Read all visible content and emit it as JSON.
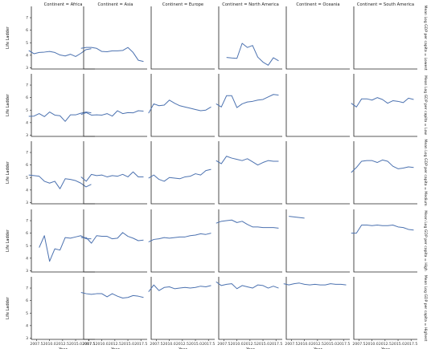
{
  "chart_data": {
    "type": "line",
    "columns": [
      "Continent = Africa",
      "Continent = Asia",
      "Continent = Europe",
      "Continent = North America",
      "Continent = Oceania",
      "Continent = South America"
    ],
    "rows": [
      "Mean Log GDP per capita = Lowest",
      "Mean Log GDP per capita = Low",
      "Mean Log GDP per capita = Medium",
      "Mean Log GDP per capita = High",
      "Mean Log GDP per capita = Highest"
    ],
    "ylabel": "Life Ladder",
    "xlabel": "Year",
    "xlim": [
      2006.5,
      2018.7
    ],
    "ylim": [
      2.9,
      7.9
    ],
    "yticks": [
      3,
      4,
      5,
      6,
      7
    ],
    "xticks": [
      2007.5,
      2010.0,
      2012.5,
      2015.0,
      2017.5
    ],
    "xtick_labels": [
      "2007.5",
      "2010.0",
      "2012.5",
      "2015.0",
      "2017.5"
    ],
    "ytick_labels": [
      "3",
      "4",
      "5",
      "6",
      "7"
    ],
    "panels": [
      [
        {
          "x": [
            2006,
            2007,
            2008,
            2009,
            2010,
            2011,
            2012,
            2013,
            2014,
            2015,
            2016,
            2017,
            2018
          ],
          "y": [
            4.38,
            4.12,
            4.22,
            4.25,
            4.3,
            4.22,
            4.02,
            3.94,
            4.08,
            3.9,
            4.15,
            4.45,
            4.52
          ]
        },
        {
          "x": [
            2006,
            2007,
            2008,
            2009,
            2010,
            2011,
            2012,
            2013,
            2014,
            2015,
            2016,
            2017,
            2018
          ],
          "y": [
            4.55,
            4.62,
            4.62,
            4.55,
            4.3,
            4.28,
            4.35,
            4.35,
            4.38,
            4.62,
            4.22,
            3.6,
            3.5
          ]
        },
        {
          "x": [],
          "y": []
        },
        {
          "x": [
            2008,
            2009,
            2010,
            2011,
            2012,
            2013,
            2014,
            2015,
            2016,
            2017,
            2018
          ],
          "y": [
            3.82,
            3.78,
            3.75,
            4.95,
            4.62,
            4.78,
            3.85,
            3.45,
            3.2,
            3.8,
            3.55
          ]
        },
        {
          "x": [],
          "y": []
        },
        {
          "x": [],
          "y": []
        }
      ],
      [
        {
          "x": [
            2006,
            2007,
            2008,
            2009,
            2010,
            2011,
            2012,
            2013,
            2014,
            2015,
            2016,
            2017,
            2018
          ],
          "y": [
            4.5,
            4.52,
            4.72,
            4.48,
            4.85,
            4.6,
            4.55,
            4.1,
            4.62,
            4.62,
            4.75,
            4.85,
            4.78
          ]
        },
        {
          "x": [
            2006,
            2007,
            2008,
            2009,
            2010,
            2011,
            2012,
            2013,
            2014,
            2015,
            2016,
            2017,
            2018
          ],
          "y": [
            4.65,
            4.8,
            4.6,
            4.62,
            4.6,
            4.72,
            4.52,
            4.95,
            4.72,
            4.8,
            4.78,
            4.95,
            4.92
          ]
        },
        {
          "x": [
            2006,
            2007,
            2008,
            2009,
            2010,
            2011,
            2012,
            2013,
            2014,
            2015,
            2016,
            2017,
            2018
          ],
          "y": [
            4.75,
            5.5,
            5.35,
            5.4,
            5.8,
            5.55,
            5.35,
            5.25,
            5.15,
            5.05,
            4.95,
            5.0,
            5.25
          ]
        },
        {
          "x": [
            2006,
            2007,
            2008,
            2009,
            2010,
            2011,
            2012,
            2013,
            2014,
            2015,
            2016,
            2017,
            2018
          ],
          "y": [
            5.5,
            5.25,
            6.15,
            6.15,
            5.2,
            5.5,
            5.65,
            5.7,
            5.8,
            5.85,
            6.05,
            6.25,
            6.2
          ]
        },
        {
          "x": [],
          "y": []
        },
        {
          "x": [
            2006,
            2007,
            2008,
            2009,
            2010,
            2011,
            2012,
            2013,
            2014,
            2015,
            2016,
            2017,
            2018
          ],
          "y": [
            5.55,
            5.25,
            5.9,
            5.9,
            5.8,
            6.0,
            5.85,
            5.55,
            5.75,
            5.7,
            5.6,
            5.95,
            5.85
          ]
        }
      ],
      [
        {
          "x": [
            2006,
            2007,
            2008,
            2009,
            2010,
            2011,
            2012,
            2013,
            2014,
            2015,
            2016,
            2017,
            2018
          ],
          "y": [
            5.2,
            5.15,
            5.1,
            4.7,
            4.55,
            4.7,
            4.1,
            4.9,
            4.85,
            4.75,
            4.55,
            4.25,
            4.45
          ]
        },
        {
          "x": [
            2006,
            2007,
            2008,
            2009,
            2010,
            2011,
            2012,
            2013,
            2014,
            2015,
            2016,
            2017,
            2018
          ],
          "y": [
            5.05,
            4.7,
            5.25,
            5.15,
            5.2,
            5.05,
            5.15,
            5.1,
            5.25,
            5.05,
            5.45,
            5.05,
            5.05
          ]
        },
        {
          "x": [
            2006,
            2007,
            2008,
            2009,
            2010,
            2011,
            2012,
            2013,
            2014,
            2015,
            2016,
            2017,
            2018
          ],
          "y": [
            4.95,
            5.2,
            4.85,
            4.7,
            5.0,
            4.95,
            4.9,
            5.05,
            5.1,
            5.3,
            5.2,
            5.55,
            5.65
          ]
        },
        {
          "x": [
            2006,
            2007,
            2008,
            2009,
            2010,
            2011,
            2012,
            2013,
            2014,
            2015,
            2016,
            2017,
            2018
          ],
          "y": [
            6.35,
            6.1,
            6.7,
            6.55,
            6.45,
            6.35,
            6.5,
            6.25,
            6.0,
            6.2,
            6.35,
            6.3,
            6.3
          ]
        },
        {
          "x": [],
          "y": []
        },
        {
          "x": [
            2006,
            2007,
            2008,
            2009,
            2010,
            2011,
            2012,
            2013,
            2014,
            2015,
            2016,
            2017,
            2018
          ],
          "y": [
            5.4,
            5.8,
            6.3,
            6.35,
            6.35,
            6.2,
            6.4,
            6.3,
            5.9,
            5.7,
            5.75,
            5.85,
            5.8
          ]
        }
      ],
      [
        {
          "x": [
            2008,
            2009,
            2010,
            2011,
            2012,
            2013,
            2014,
            2015,
            2016,
            2017,
            2018
          ],
          "y": [
            4.85,
            5.8,
            3.75,
            4.75,
            4.65,
            5.65,
            5.6,
            5.7,
            5.8,
            5.55,
            5.55
          ]
        },
        {
          "x": [
            2006,
            2007,
            2008,
            2009,
            2010,
            2011,
            2012,
            2013,
            2014,
            2015,
            2016,
            2017,
            2018
          ],
          "y": [
            5.65,
            5.65,
            5.2,
            5.8,
            5.75,
            5.75,
            5.55,
            5.6,
            6.05,
            5.75,
            5.6,
            5.4,
            5.45
          ]
        },
        {
          "x": [
            2006,
            2007,
            2008,
            2009,
            2010,
            2011,
            2012,
            2013,
            2014,
            2015,
            2016,
            2017,
            2018
          ],
          "y": [
            5.3,
            5.5,
            5.55,
            5.65,
            5.6,
            5.65,
            5.7,
            5.7,
            5.8,
            5.85,
            5.95,
            5.9,
            6.0
          ]
        },
        {
          "x": [
            2006,
            2007,
            2008,
            2009,
            2010,
            2011,
            2012,
            2013,
            2014,
            2015,
            2016,
            2017,
            2018
          ],
          "y": [
            6.8,
            6.95,
            7.0,
            7.05,
            6.85,
            6.95,
            6.7,
            6.5,
            6.5,
            6.45,
            6.45,
            6.45,
            6.4
          ]
        },
        {
          "x": [
            2007,
            2008,
            2009,
            2010
          ],
          "y": [
            7.35,
            7.3,
            7.25,
            7.2
          ]
        },
        {
          "x": [
            2006,
            2007,
            2008,
            2009,
            2010,
            2011,
            2012,
            2013,
            2014,
            2015,
            2016,
            2017,
            2018
          ],
          "y": [
            6.0,
            6.0,
            6.65,
            6.65,
            6.6,
            6.65,
            6.6,
            6.6,
            6.65,
            6.5,
            6.45,
            6.3,
            6.25
          ]
        }
      ],
      [
        {
          "x": [],
          "y": []
        },
        {
          "x": [
            2006,
            2007,
            2008,
            2009,
            2010,
            2011,
            2012,
            2013,
            2014,
            2015,
            2016,
            2017,
            2018
          ],
          "y": [
            6.65,
            6.55,
            6.5,
            6.55,
            6.55,
            6.3,
            6.55,
            6.35,
            6.2,
            6.25,
            6.4,
            6.35,
            6.25
          ]
        },
        {
          "x": [
            2006,
            2007,
            2008,
            2009,
            2010,
            2011,
            2012,
            2013,
            2014,
            2015,
            2016,
            2017,
            2018
          ],
          "y": [
            6.7,
            7.25,
            6.8,
            7.05,
            7.1,
            6.95,
            7.0,
            7.05,
            7.0,
            7.05,
            7.15,
            7.1,
            7.2
          ]
        },
        {
          "x": [
            2006,
            2007,
            2008,
            2009,
            2010,
            2011,
            2012,
            2013,
            2014,
            2015,
            2016,
            2017,
            2018
          ],
          "y": [
            7.5,
            7.2,
            7.3,
            7.35,
            6.95,
            7.2,
            7.1,
            7.0,
            7.25,
            7.2,
            7.0,
            7.15,
            7.0
          ]
        },
        {
          "x": [
            2006,
            2007,
            2008,
            2009,
            2010,
            2011,
            2012,
            2013,
            2014,
            2015,
            2016,
            2017,
            2018
          ],
          "y": [
            7.35,
            7.25,
            7.35,
            7.4,
            7.3,
            7.25,
            7.3,
            7.25,
            7.25,
            7.35,
            7.3,
            7.3,
            7.25
          ]
        },
        {
          "x": [],
          "y": []
        }
      ]
    ]
  }
}
